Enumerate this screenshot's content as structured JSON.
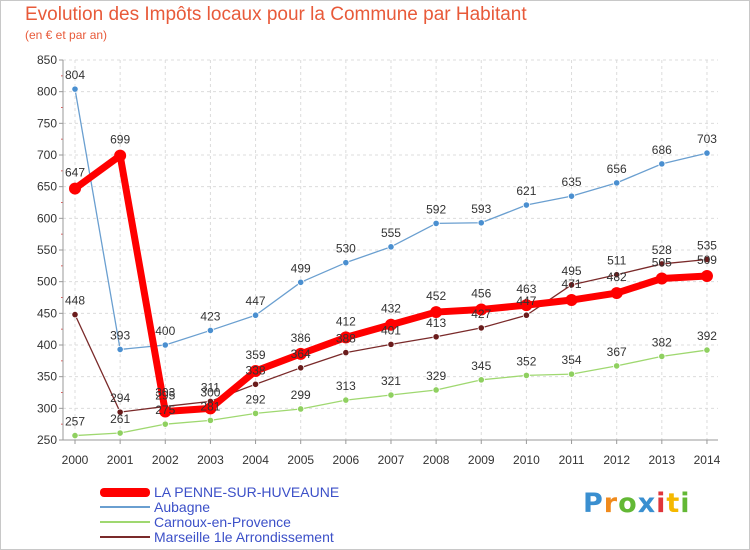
{
  "header": {
    "title": "Evolution des Impôts locaux pour la Commune par Habitant",
    "subtitle": "(en € et par an)"
  },
  "logo": {
    "text": "Proxiti",
    "colors": [
      "#3a8fd0",
      "#f08a1c",
      "#63b835",
      "#3a8fd0",
      "#e0353a",
      "#f5b800",
      "#63b835"
    ]
  },
  "chart_data": {
    "type": "line",
    "title": "Evolution des Impôts locaux pour la Commune par Habitant",
    "subtitle": "(en € et par an)",
    "categories": [
      "2000",
      "2001",
      "2002",
      "2003",
      "2004",
      "2005",
      "2006",
      "2007",
      "2008",
      "2009",
      "2010",
      "2011",
      "2012",
      "2013",
      "2014"
    ],
    "ylim": [
      250,
      850
    ],
    "yticks": [
      250,
      300,
      350,
      400,
      450,
      500,
      550,
      600,
      650,
      700,
      750,
      800,
      850
    ],
    "grid": true,
    "legend_position": "bottom-left",
    "series": [
      {
        "name": "LA PENNE-SUR-HUVEAUNE",
        "color": "#ff0000",
        "values": [
          647,
          699,
          295,
          300,
          359,
          386,
          412,
          432,
          452,
          456,
          463,
          471,
          482,
          505,
          509
        ]
      },
      {
        "name": "Aubagne",
        "color": "#6a9fd0",
        "values": [
          804,
          393,
          400,
          423,
          447,
          499,
          530,
          555,
          592,
          593,
          621,
          635,
          656,
          686,
          703
        ]
      },
      {
        "name": "Carnoux-en-Provence",
        "color": "#9fd870",
        "values": [
          257,
          261,
          275,
          281,
          292,
          299,
          313,
          321,
          329,
          345,
          352,
          354,
          367,
          382,
          392
        ]
      },
      {
        "name": "Marseille 1le  Arrondissement",
        "color": "#7a2a2a",
        "values": [
          448,
          294,
          303,
          311,
          338,
          364,
          388,
          401,
          413,
          427,
          447,
          495,
          511,
          528,
          535
        ]
      }
    ]
  }
}
